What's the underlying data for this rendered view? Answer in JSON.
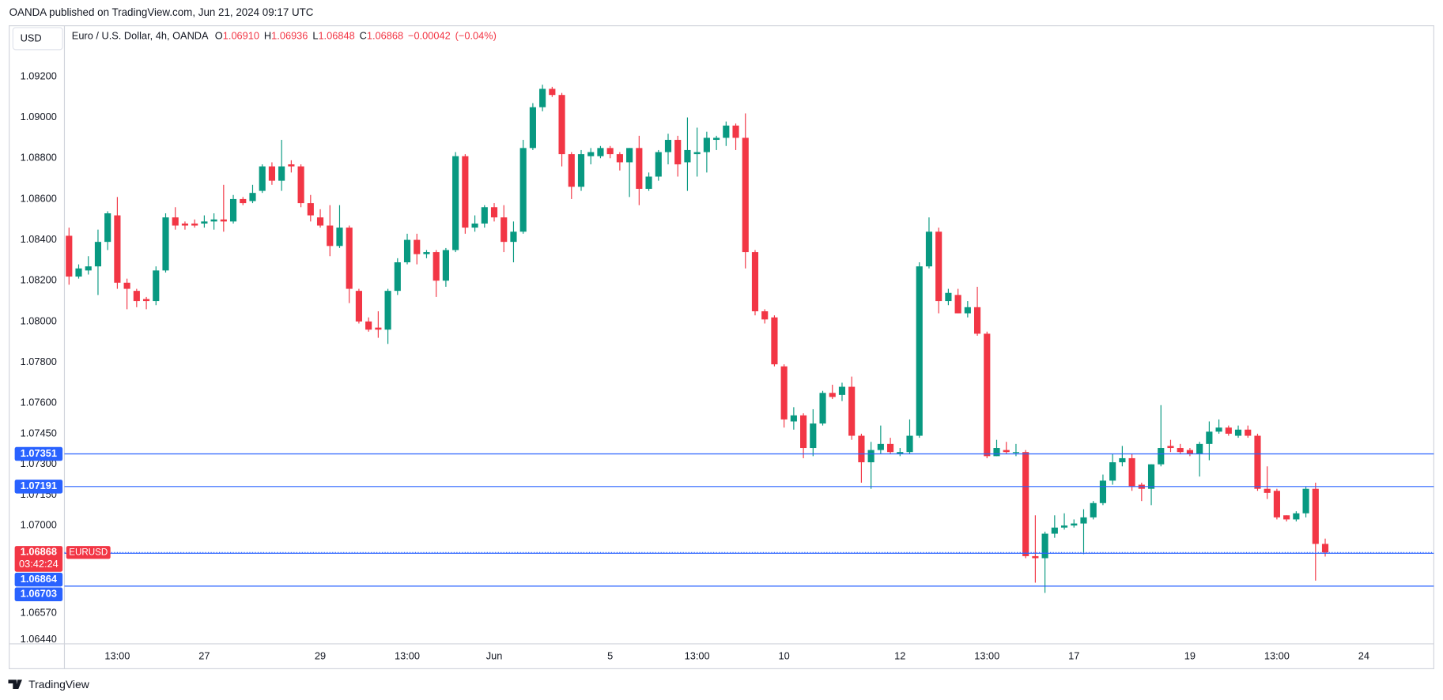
{
  "chart_data": {
    "type": "candlestick",
    "publisher": "OANDA published on TradingView.com, Jun 21, 2024 09:17 UTC",
    "currency": "USD",
    "title": "Euro / U.S. Dollar, 4h, OANDA",
    "ohlc_legend": [
      {
        "name": "O",
        "value": 1.0691,
        "label": "1.06910"
      },
      {
        "name": "H",
        "value": 1.06936,
        "label": "1.06936"
      },
      {
        "name": "L",
        "value": 1.06848,
        "label": "1.06848"
      },
      {
        "name": "C",
        "value": 1.06868,
        "label": "1.06868"
      }
    ],
    "change": {
      "value": -0.00042,
      "label": "−0.00042"
    },
    "change_pct": {
      "value": -0.04,
      "label": "(−0.04%)"
    },
    "up_color": "#089981",
    "down_color": "#f23645",
    "line_color": "#2962ff",
    "footer": "TradingView",
    "categories": [
      null,
      null,
      null,
      null,
      null,
      "13:00",
      null,
      null,
      null,
      null,
      null,
      null,
      null,
      null,
      "27",
      null,
      null,
      null,
      null,
      null,
      null,
      null,
      null,
      null,
      null,
      null,
      "29",
      null,
      null,
      null,
      null,
      null,
      null,
      null,
      null,
      "13:00",
      null,
      null,
      null,
      null,
      null,
      null,
      null,
      null,
      "Jun",
      null,
      null,
      null,
      null,
      null,
      null,
      null,
      null,
      null,
      null,
      null,
      "5",
      null,
      null,
      null,
      null,
      null,
      null,
      null,
      null,
      "13:00",
      null,
      null,
      null,
      null,
      null,
      null,
      null,
      null,
      "10",
      null,
      null,
      null,
      null,
      null,
      null,
      null,
      null,
      null,
      null,
      null,
      "12",
      null,
      null,
      null,
      null,
      null,
      null,
      null,
      null,
      "13:00",
      null,
      null,
      null,
      null,
      null,
      null,
      null,
      null,
      "17",
      null,
      null,
      null,
      null,
      null,
      null,
      null,
      null,
      null,
      null,
      null,
      "19",
      null,
      null,
      null,
      null,
      null,
      null,
      null,
      null,
      "13:00",
      null,
      null,
      null,
      null,
      null,
      null,
      null,
      null,
      "24"
    ],
    "open": [
      1.0842,
      1.0822,
      1.0825,
      1.0827,
      1.0839,
      1.0852,
      1.0819,
      1.0815,
      1.0811,
      1.081,
      1.0825,
      1.0851,
      1.0848,
      1.0848,
      1.0848,
      1.0849,
      1.085,
      1.0849,
      1.086,
      1.0859,
      1.0864,
      1.0876,
      1.0869,
      1.0877,
      1.0876,
      1.0858,
      1.0851,
      1.0847,
      1.0837,
      1.0846,
      1.0815,
      1.08,
      1.0797,
      1.0796,
      1.0815,
      1.0829,
      1.084,
      1.0833,
      1.0834,
      1.082,
      1.0835,
      1.0881,
      1.0846,
      1.0848,
      1.0856,
      1.0851,
      1.0839,
      1.0844,
      1.0885,
      1.0905,
      1.0914,
      1.0911,
      1.0882,
      1.0866,
      1.0881,
      1.0881,
      1.0885,
      1.0882,
      1.0878,
      1.0885,
      1.0865,
      1.0871,
      1.0883,
      1.0889,
      1.0878,
      1.0882,
      1.0883,
      1.0889,
      1.089,
      1.0896,
      1.089,
      1.0834,
      1.0805,
      1.0802,
      1.0778,
      1.0751,
      1.0754,
      1.0738,
      1.075,
      1.0765,
      1.0764,
      1.0768,
      1.0744,
      1.0731,
      1.0737,
      1.074,
      1.0735,
      1.0736,
      1.0744,
      1.0827,
      1.0844,
      1.081,
      1.0813,
      1.0804,
      1.0807,
      1.0794,
      1.0734,
      1.0737,
      1.0736,
      1.0736,
      1.0685,
      1.0684,
      1.0696,
      1.0699,
      1.07,
      1.0701,
      1.0704,
      1.0711,
      1.0722,
      1.0731,
      1.0733,
      1.072,
      1.0718,
      1.073,
      1.0739,
      1.0738,
      1.0737,
      1.0735,
      1.074,
      1.0746,
      1.0748,
      1.0744,
      1.0747,
      1.0744,
      1.0718,
      1.0717,
      1.0705,
      1.0703,
      1.0706,
      1.0718,
      1.0691,
      null,
      null,
      null,
      null
    ],
    "high": [
      1.0846,
      1.0828,
      1.0832,
      1.0845,
      1.0854,
      1.0861,
      1.0821,
      1.0816,
      1.0812,
      1.0827,
      1.0853,
      1.0856,
      1.0849,
      1.085,
      1.0852,
      1.0853,
      1.0867,
      1.0862,
      1.0861,
      1.0867,
      1.0877,
      1.0878,
      1.0889,
      1.0879,
      1.0877,
      1.0862,
      1.0855,
      1.0857,
      1.0857,
      1.0847,
      1.0816,
      1.0802,
      1.0805,
      1.0816,
      1.0831,
      1.0843,
      1.0843,
      1.0835,
      1.0835,
      1.0836,
      1.0883,
      1.0882,
      1.0852,
      1.0857,
      1.0858,
      1.0857,
      1.0849,
      1.0889,
      1.0907,
      1.0916,
      1.0915,
      1.0912,
      1.0883,
      1.0884,
      1.0885,
      1.0886,
      1.0886,
      1.0883,
      1.0885,
      1.0891,
      1.0873,
      1.0884,
      1.0892,
      1.0891,
      1.09,
      1.0895,
      1.0893,
      1.0891,
      1.0898,
      1.0897,
      1.0902,
      1.0835,
      1.0806,
      1.0803,
      1.0779,
      1.0758,
      1.0755,
      1.0757,
      1.0766,
      1.0769,
      1.077,
      1.0773,
      1.0745,
      1.0741,
      1.0749,
      1.0743,
      1.0738,
      1.0752,
      1.0829,
      1.0851,
      1.0846,
      1.0816,
      1.0816,
      1.081,
      1.0817,
      1.0795,
      1.0742,
      1.0741,
      1.074,
      1.0737,
      1.0705,
      1.0697,
      1.0705,
      1.0706,
      1.0703,
      1.0708,
      1.0712,
      1.0725,
      1.0735,
      1.0739,
      1.0735,
      1.0721,
      1.073,
      1.0759,
      1.0742,
      1.074,
      1.0738,
      1.0741,
      1.0751,
      1.0752,
      1.0749,
      1.0749,
      1.0749,
      1.0745,
      1.0729,
      1.0718,
      1.0705,
      1.0707,
      1.0719,
      1.0721,
      1.06936,
      null,
      null,
      null,
      null
    ],
    "low": [
      1.0818,
      1.0821,
      1.0823,
      1.0813,
      1.0835,
      1.0816,
      1.0806,
      1.0807,
      1.0806,
      1.0808,
      1.0824,
      1.0845,
      1.0845,
      1.0846,
      1.0846,
      1.0845,
      1.0844,
      1.0848,
      1.0857,
      1.0858,
      1.0863,
      1.0867,
      1.0864,
      1.0873,
      1.0856,
      1.0849,
      1.0846,
      1.0832,
      1.0836,
      1.0809,
      1.0799,
      1.0795,
      1.0792,
      1.0789,
      1.0813,
      1.0828,
      1.0828,
      1.0831,
      1.0812,
      1.0817,
      1.0834,
      1.0843,
      1.0844,
      1.0846,
      1.0849,
      1.0834,
      1.0829,
      1.0843,
      1.0884,
      1.0903,
      1.091,
      1.0876,
      1.086,
      1.0864,
      1.0877,
      1.088,
      1.088,
      1.0874,
      1.0861,
      1.0857,
      1.0864,
      1.0869,
      1.0877,
      1.0871,
      1.0864,
      1.0871,
      1.0873,
      1.0884,
      1.0886,
      1.0884,
      1.0826,
      1.0803,
      1.0799,
      1.0778,
      1.0748,
      1.0747,
      1.0733,
      1.0734,
      1.0749,
      1.0762,
      1.0761,
      1.0742,
      1.0721,
      1.0718,
      1.0735,
      1.0735,
      1.0734,
      1.0735,
      1.0743,
      1.0826,
      1.0804,
      1.0808,
      1.0804,
      1.0802,
      1.0793,
      1.0733,
      1.0734,
      1.0735,
      1.0734,
      1.0684,
      1.0672,
      1.0667,
      1.0694,
      1.0698,
      1.0699,
      1.0686,
      1.0703,
      1.071,
      1.072,
      1.0729,
      1.0717,
      1.0712,
      1.071,
      1.0729,
      1.0736,
      1.0735,
      1.0734,
      1.0724,
      1.0732,
      1.0745,
      1.0744,
      1.0743,
      1.0743,
      1.0717,
      1.0713,
      1.0703,
      1.0702,
      1.0702,
      1.0704,
      1.0673,
      1.06848,
      null,
      null,
      null,
      null
    ],
    "close": [
      1.0822,
      1.0826,
      1.0827,
      1.0839,
      1.0853,
      1.0819,
      1.0816,
      1.081,
      1.081,
      1.0825,
      1.0851,
      1.0847,
      1.0847,
      1.0847,
      1.0849,
      1.085,
      1.0849,
      1.086,
      1.0858,
      1.0863,
      1.0876,
      1.0869,
      1.0876,
      1.0876,
      1.0858,
      1.0852,
      1.0847,
      1.0837,
      1.0846,
      1.0816,
      1.08,
      1.0796,
      1.0796,
      1.0815,
      1.0829,
      1.084,
      1.0833,
      1.0834,
      1.082,
      1.0835,
      1.0881,
      1.0846,
      1.0848,
      1.0856,
      1.0851,
      1.0839,
      1.0844,
      1.0885,
      1.0905,
      1.0914,
      1.0911,
      1.0882,
      1.0866,
      1.0882,
      1.0883,
      1.0885,
      1.0882,
      1.0878,
      1.0885,
      1.0865,
      1.0871,
      1.0883,
      1.0889,
      1.0877,
      1.0884,
      1.0883,
      1.089,
      1.089,
      1.0896,
      1.089,
      1.0834,
      1.0805,
      1.0801,
      1.0779,
      1.0752,
      1.0754,
      1.0738,
      1.075,
      1.0765,
      1.0763,
      1.0768,
      1.0744,
      1.0731,
      1.0737,
      1.074,
      1.0736,
      1.0736,
      1.0744,
      1.0827,
      1.0844,
      1.081,
      1.0814,
      1.0804,
      1.0807,
      1.0794,
      1.0734,
      1.0738,
      1.0736,
      1.0736,
      1.0685,
      1.0684,
      1.0696,
      1.0699,
      1.07,
      1.0701,
      1.0704,
      1.0711,
      1.0722,
      1.0731,
      1.0733,
      1.0719,
      1.0718,
      1.073,
      1.0738,
      1.0738,
      1.0736,
      1.0735,
      1.074,
      1.0746,
      1.0748,
      1.0745,
      1.0747,
      1.0744,
      1.0718,
      1.0716,
      1.0704,
      1.0703,
      1.0706,
      1.0718,
      1.0691,
      1.06868,
      null,
      null,
      null,
      null
    ],
    "ylim": [
      1.0642,
      1.0935
    ],
    "yticks": [
      {
        "value": 1.092,
        "label": "1.09200"
      },
      {
        "value": 1.09,
        "label": "1.09000"
      },
      {
        "value": 1.088,
        "label": "1.08800"
      },
      {
        "value": 1.086,
        "label": "1.08600"
      },
      {
        "value": 1.084,
        "label": "1.08400"
      },
      {
        "value": 1.082,
        "label": "1.08200"
      },
      {
        "value": 1.08,
        "label": "1.08000"
      },
      {
        "value": 1.078,
        "label": "1.07800"
      },
      {
        "value": 1.076,
        "label": "1.07600"
      },
      {
        "value": 1.0745,
        "label": "1.07450"
      },
      {
        "value": 1.073,
        "label": "1.07300"
      },
      {
        "value": 1.0715,
        "label": "1.07150"
      },
      {
        "value": 1.07,
        "label": "1.07000"
      },
      {
        "value": 1.0657,
        "label": "1.06570"
      },
      {
        "value": 1.0644,
        "label": "1.06440"
      }
    ],
    "price_lines": [
      {
        "value": 1.07351,
        "label": "1.07351"
      },
      {
        "value": 1.07191,
        "label": "1.07191"
      },
      {
        "value": 1.06864,
        "label": "1.06864"
      },
      {
        "value": 1.06703,
        "label": "1.06703"
      }
    ],
    "current_price": {
      "value": 1.06868,
      "label": "1.06868",
      "symbol": "EURUSD",
      "countdown": "03:42:24"
    }
  }
}
